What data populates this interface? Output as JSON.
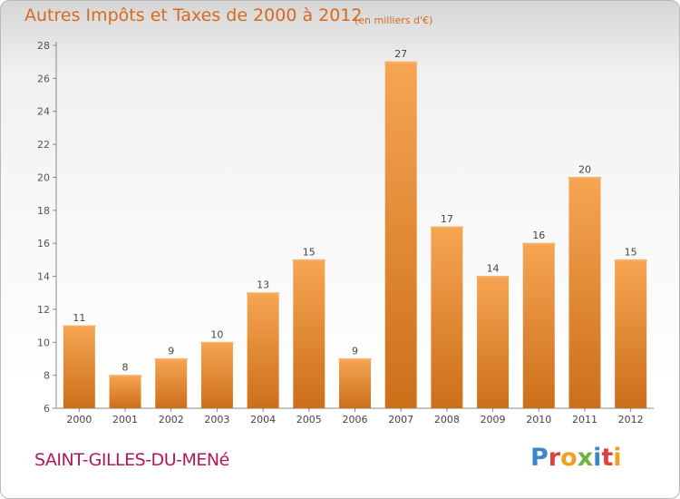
{
  "header": {
    "title": "Autres Impôts et Taxes de 2000 à 2012",
    "unit": "(en milliers d'€)"
  },
  "footer": {
    "town": "SAINT-GILLES-DU-MENé",
    "logo_text": "Proxiti"
  },
  "colors": {
    "bar_light": "#f6a552",
    "bar_dark": "#cc6f1a",
    "title": "#d76a1e",
    "town": "#b2195d"
  },
  "chart_data": {
    "type": "bar",
    "categories": [
      "2000",
      "2001",
      "2002",
      "2003",
      "2004",
      "2005",
      "2006",
      "2007",
      "2008",
      "2009",
      "2010",
      "2011",
      "2012"
    ],
    "values": [
      11,
      8,
      9,
      10,
      13,
      15,
      9,
      27,
      17,
      14,
      16,
      20,
      15
    ],
    "title": "Autres Impôts et Taxes de 2000 à 2012",
    "xlabel": "",
    "ylabel": "",
    "ylim": [
      6,
      28
    ],
    "yticks": [
      6,
      8,
      10,
      12,
      14,
      16,
      18,
      20,
      22,
      24,
      26,
      28
    ],
    "grid": false,
    "data_labels": true
  }
}
